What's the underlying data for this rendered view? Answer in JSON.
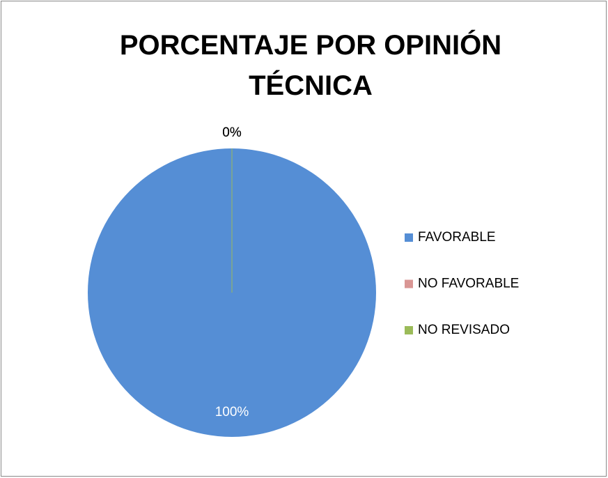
{
  "chart_data": {
    "type": "pie",
    "title": "PORCENTAJE POR OPINIÓN TÉCNICA",
    "categories": [
      "FAVORABLE",
      "NO FAVORABLE",
      "NO REVISADO"
    ],
    "values": [
      100,
      0,
      0
    ],
    "value_labels": [
      "100%",
      "0%",
      "0%"
    ],
    "colors": [
      "#558ed5",
      "#d99694",
      "#9bbb59"
    ],
    "legend": "right"
  }
}
